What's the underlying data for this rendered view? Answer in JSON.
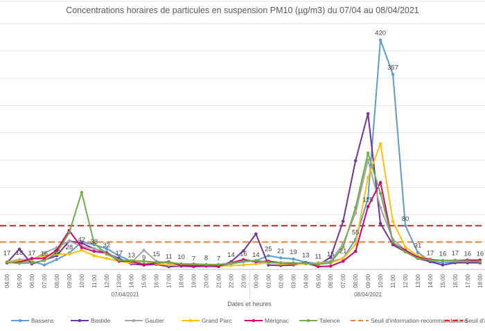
{
  "chart_data": {
    "type": "line",
    "title": "Concentrations horaires de particules en suspension PM10 (µg/m3) du 07/04 au 08/04/2021",
    "xlabel": "Dates et heures",
    "ylabel": "",
    "ylim": [
      0,
      450
    ],
    "y_gridline_step": 50,
    "grid": true,
    "legend_position": "bottom",
    "date_groups": [
      {
        "label": "07/04/2021",
        "from_index": 0,
        "to_index": 19
      },
      {
        "label": "08/04/2021",
        "from_index": 20,
        "to_index": 38
      }
    ],
    "x": [
      "04:00",
      "05:00",
      "06:00",
      "07:00",
      "08:00",
      "09:00",
      "10:00",
      "11:00",
      "12:00",
      "13:00",
      "14:00",
      "15:00",
      "16:00",
      "17:00",
      "18:00",
      "19:00",
      "20:00",
      "21:00",
      "22:00",
      "23:00",
      "00:00",
      "01:00",
      "02:00",
      "03:00",
      "04:00",
      "05:00",
      "06:00",
      "07:00",
      "08:00",
      "09:00",
      "10:00",
      "11:00",
      "12:00",
      "13:00",
      "14:00",
      "15:00",
      "16:00",
      "17:00",
      "18:00"
    ],
    "series": [
      {
        "name": "Bassens",
        "color": "#5B9BD5",
        "values": [
          12,
          14,
          15,
          8,
          18,
          30,
          50,
          45,
          38,
          25,
          15,
          10,
          12,
          12,
          10,
          8,
          8,
          8,
          10,
          14,
          16,
          25,
          21,
          19,
          13,
          11,
          14,
          20,
          55,
          130,
          420,
          357,
          80,
          31,
          15,
          12,
          13,
          12,
          12
        ]
      },
      {
        "name": "Bastide",
        "color": "#7030A0",
        "values": [
          12,
          37,
          10,
          17,
          25,
          52,
          48,
          38,
          30,
          20,
          10,
          8,
          9,
          5,
          6,
          5,
          6,
          5,
          14,
          34,
          65,
          8,
          7,
          8,
          12,
          8,
          22,
          88,
          199,
          285,
          84,
          45,
          32,
          20,
          14,
          8,
          12,
          12,
          12
        ]
      },
      {
        "name": "Gautier",
        "color": "#A5A5A5",
        "values": [
          14,
          18,
          17,
          30,
          40,
          52,
          42,
          38,
          32,
          17,
          13,
          35,
          15,
          11,
          10,
          7,
          8,
          7,
          10,
          16,
          14,
          12,
          11,
          10,
          10,
          12,
          15,
          47,
          103,
          200,
          113,
          55,
          35,
          22,
          17,
          16,
          17,
          16,
          16
        ]
      },
      {
        "name": "Grand Parc",
        "color": "#FFC000",
        "values": [
          14,
          15,
          18,
          25,
          28,
          28,
          35,
          25,
          20,
          15,
          12,
          15,
          10,
          8,
          7,
          8,
          7,
          6,
          7,
          8,
          10,
          12,
          10,
          10,
          10,
          10,
          12,
          20,
          46,
          168,
          230,
          88,
          41,
          25,
          18,
          16,
          15,
          15,
          15
        ]
      },
      {
        "name": "Mérignac",
        "color": "#D6006F",
        "values": [
          12,
          13,
          20,
          20,
          35,
          71,
          40,
          33,
          30,
          15,
          15,
          8,
          12,
          14,
          7,
          7,
          6,
          6,
          12,
          18,
          14,
          15,
          12,
          11,
          12,
          5,
          6,
          15,
          33,
          115,
          159,
          48,
          35,
          22,
          18,
          16,
          16,
          17,
          17
        ]
      },
      {
        "name": "Talence",
        "color": "#70AD47",
        "values": [
          13,
          11,
          12,
          16,
          30,
          67,
          141,
          48,
          28,
          17,
          16,
          15,
          13,
          13,
          10,
          10,
          9,
          9,
          11,
          15,
          16,
          13,
          12,
          12,
          11,
          9,
          12,
          41,
          113,
          213,
          139,
          50,
          32,
          20,
          17,
          16,
          16,
          15,
          14
        ]
      }
    ],
    "thresholds": [
      {
        "name": "Seuil d'information-recommandations",
        "value": 50,
        "color": "#ED7D31"
      },
      {
        "name": "Seuil d'alerte",
        "value": 80,
        "color": "#E02020"
      }
    ],
    "data_labels": [
      17,
      18,
      17,
      16,
      19,
      28,
      42,
      38,
      32,
      17,
      13,
      9,
      15,
      11,
      10,
      7,
      8,
      7,
      14,
      16,
      14,
      25,
      21,
      19,
      13,
      11,
      15,
      21,
      55,
      115,
      420,
      357,
      80,
      31,
      17,
      16,
      17,
      16,
      16
    ]
  }
}
